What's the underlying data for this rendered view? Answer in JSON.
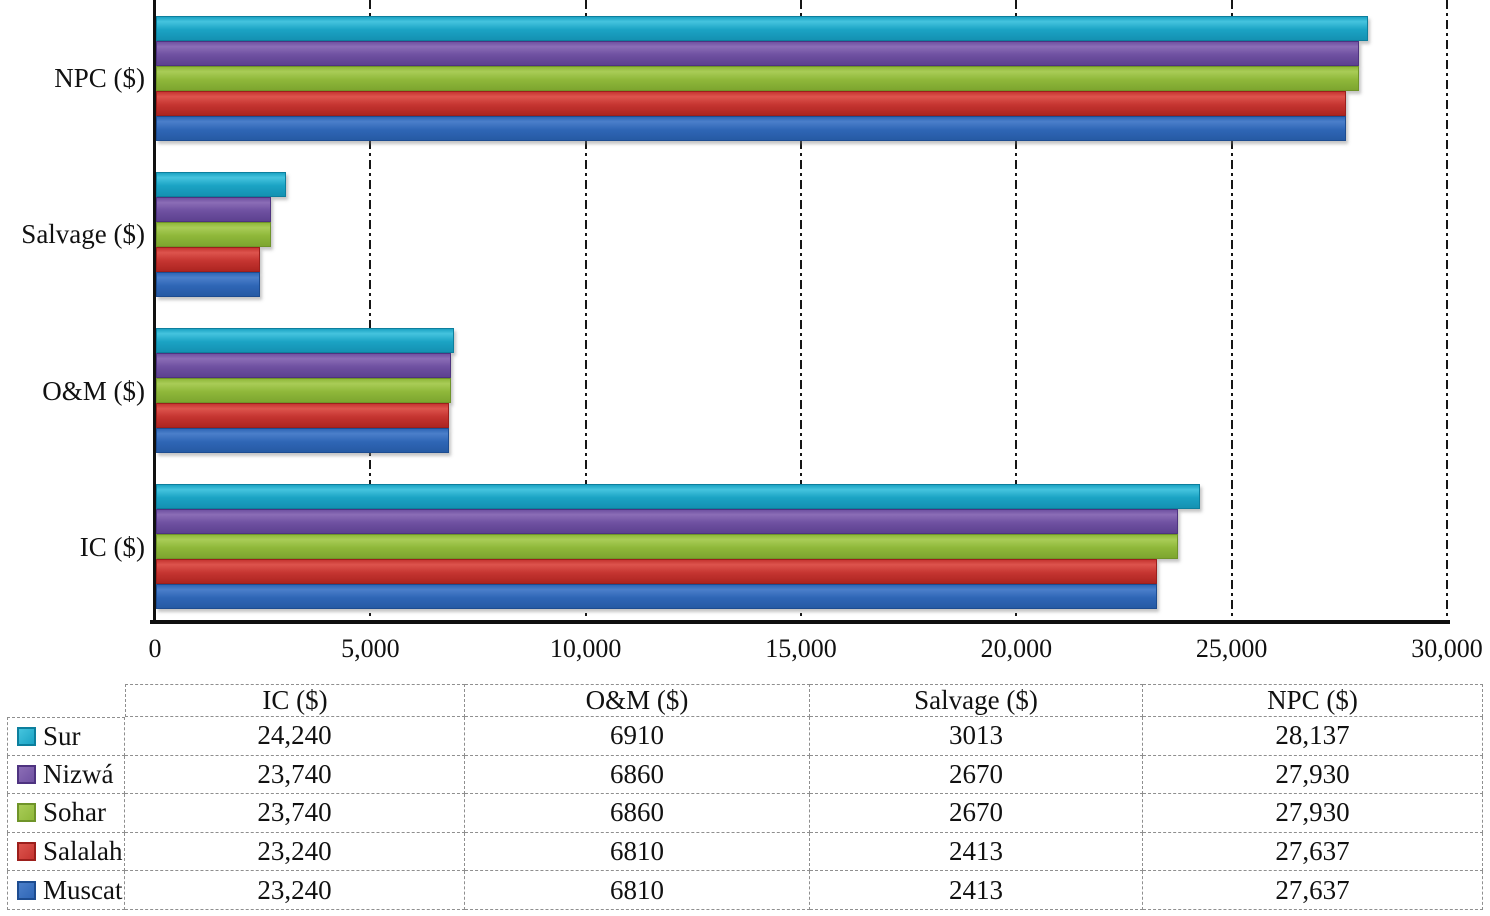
{
  "chart_data": {
    "type": "bar",
    "orientation": "horizontal",
    "title": "",
    "xlabel": "",
    "ylabel": "",
    "categories": [
      "NPC ($)",
      "Salvage ($)",
      "O&M ($)",
      "IC ($)"
    ],
    "series": [
      {
        "name": "Sur",
        "values": [
          28137,
          3013,
          6910,
          24240
        ]
      },
      {
        "name": "Nizwá",
        "values": [
          27930,
          2670,
          6860,
          23740
        ]
      },
      {
        "name": "Sohar",
        "values": [
          27930,
          2670,
          6860,
          23740
        ]
      },
      {
        "name": "Salalah",
        "values": [
          27637,
          2413,
          6810,
          23240
        ]
      },
      {
        "name": "Muscat",
        "values": [
          27637,
          2413,
          6810,
          23240
        ]
      }
    ],
    "xlim": [
      0,
      30000
    ],
    "x_tick_values": [
      0,
      5000,
      10000,
      15000,
      20000,
      25000,
      30000
    ],
    "x_tick_labels": [
      "0",
      "5,000",
      "10,000",
      "15,000",
      "20,000",
      "25,000",
      "30,000"
    ],
    "grid": "vertical dash-dot gridlines",
    "legend_position": "table below chart"
  },
  "colors": {
    "Sur": {
      "light": "#45c4de",
      "base": "#1ba3c4",
      "dark": "#1491b2",
      "border": "#0d7f9d"
    },
    "Nizwá": {
      "light": "#8b6db6",
      "base": "#6f51a1",
      "dark": "#5d4190",
      "border": "#4e3380"
    },
    "Sohar": {
      "light": "#a9cc57",
      "base": "#8fb83a",
      "dark": "#7da52f",
      "border": "#6f9429"
    },
    "Salalah": {
      "light": "#dd544d",
      "base": "#c53531",
      "dark": "#ad2521",
      "border": "#9c1f1c"
    },
    "Muscat": {
      "light": "#4b7fca",
      "base": "#2f66b6",
      "dark": "#265aa4",
      "border": "#1d4c90"
    }
  },
  "table": {
    "headers": [
      "IC ($)",
      "O&M ($)",
      "Salvage ($)",
      "NPC ($)"
    ],
    "rows": [
      {
        "name": "Sur",
        "values": [
          "24,240",
          "6910",
          "3013",
          "28,137"
        ]
      },
      {
        "name": "Nizwá",
        "values": [
          "23,740",
          "6860",
          "2670",
          "27,930"
        ]
      },
      {
        "name": "Sohar",
        "values": [
          "23,740",
          "6860",
          "2670",
          "27,930"
        ]
      },
      {
        "name": "Salalah",
        "values": [
          "23,240",
          "6810",
          "2413",
          "27,637"
        ]
      },
      {
        "name": "Muscat",
        "values": [
          "23,240",
          "6810",
          "2413",
          "27,637"
        ]
      }
    ]
  }
}
